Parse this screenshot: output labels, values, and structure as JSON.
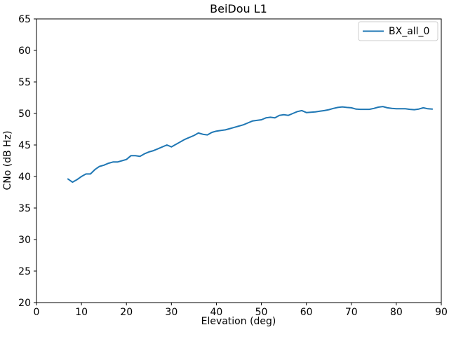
{
  "chart_data": {
    "type": "line",
    "title": "BeiDou L1",
    "xlabel": "Elevation (deg)",
    "ylabel": "CNo (dB Hz)",
    "xlim": [
      0,
      90
    ],
    "ylim": [
      20,
      65
    ],
    "xticks": [
      0,
      10,
      20,
      30,
      40,
      50,
      60,
      70,
      80,
      90
    ],
    "yticks": [
      20,
      25,
      30,
      35,
      40,
      45,
      50,
      55,
      60,
      65
    ],
    "grid": false,
    "legend": {
      "position": "upper right",
      "entries": [
        {
          "label": "BX_all_0",
          "color": "#1f77b4"
        }
      ]
    },
    "series": [
      {
        "name": "BX_all_0",
        "color": "#1f77b4",
        "x": [
          7,
          8,
          9,
          10,
          11,
          12,
          13,
          14,
          15,
          16,
          17,
          18,
          19,
          20,
          21,
          22,
          23,
          24,
          25,
          26,
          27,
          28,
          29,
          30,
          31,
          32,
          33,
          34,
          35,
          36,
          37,
          38,
          39,
          40,
          41,
          42,
          43,
          44,
          45,
          46,
          47,
          48,
          49,
          50,
          51,
          52,
          53,
          54,
          55,
          56,
          57,
          58,
          59,
          60,
          61,
          62,
          63,
          64,
          65,
          66,
          67,
          68,
          69,
          70,
          71,
          72,
          73,
          74,
          75,
          76,
          77,
          78,
          79,
          80,
          81,
          82,
          83,
          84,
          85,
          86,
          87,
          88
        ],
        "y": [
          39.6,
          39.1,
          39.5,
          40.0,
          40.4,
          40.4,
          41.1,
          41.6,
          41.8,
          42.1,
          42.3,
          42.3,
          42.5,
          42.7,
          43.3,
          43.3,
          43.2,
          43.6,
          43.9,
          44.1,
          44.4,
          44.7,
          45.0,
          44.7,
          45.1,
          45.5,
          45.9,
          46.2,
          46.5,
          46.9,
          46.7,
          46.6,
          47.0,
          47.2,
          47.3,
          47.4,
          47.6,
          47.8,
          48.0,
          48.2,
          48.5,
          48.8,
          48.9,
          49.0,
          49.3,
          49.4,
          49.3,
          49.7,
          49.8,
          49.7,
          50.0,
          50.3,
          50.45,
          50.15,
          50.2,
          50.25,
          50.35,
          50.45,
          50.6,
          50.8,
          50.95,
          51.05,
          50.95,
          50.9,
          50.7,
          50.65,
          50.65,
          50.65,
          50.8,
          51.0,
          51.1,
          50.9,
          50.8,
          50.75,
          50.75,
          50.75,
          50.65,
          50.6,
          50.7,
          50.9,
          50.75,
          50.7
        ]
      }
    ]
  },
  "colors": {
    "line": "#1f77b4",
    "axis": "#000000",
    "legend_border": "#cccccc",
    "background": "#ffffff"
  }
}
